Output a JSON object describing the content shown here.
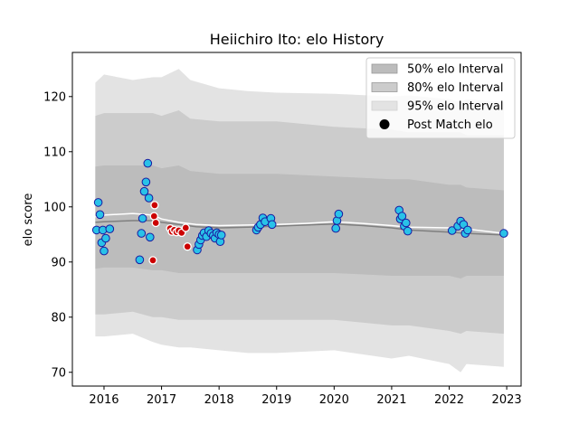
{
  "chart_data": {
    "type": "scatter",
    "title": "Heiichiro Ito: elo History",
    "xlabel": "",
    "ylabel": "elo score",
    "xlim": [
      2015.45,
      2023.25
    ],
    "ylim": [
      67.5,
      128
    ],
    "x_ticks": [
      2016,
      2017,
      2018,
      2019,
      2020,
      2021,
      2022,
      2023
    ],
    "x_tick_labels": [
      "2016",
      "2017",
      "2018",
      "2019",
      "2020",
      "2021",
      "2022",
      "2023"
    ],
    "y_ticks": [
      70,
      80,
      90,
      100,
      110,
      120
    ],
    "y_tick_labels": [
      "70",
      "80",
      "90",
      "100",
      "110",
      "120"
    ],
    "legend_position": "top-right",
    "legend": [
      {
        "label": "50% elo Interval",
        "kind": "band50"
      },
      {
        "label": "80% elo Interval",
        "kind": "band80"
      },
      {
        "label": "95% elo Interval",
        "kind": "band95"
      },
      {
        "label": "Post Match elo",
        "kind": "marker"
      }
    ],
    "colors": {
      "band95": "#e3e3e3",
      "band80": "#cccccc",
      "band50": "#bcbcbc",
      "mean_line": "#ffffff",
      "median_line": "#7f7f7f",
      "marker_fill": "#29c2e8",
      "marker_edge": "#1a1aa0",
      "red_fill": "#cc0000",
      "red_edge": "#ffffff"
    },
    "bands": {
      "x": [
        2015.85,
        2016.0,
        2016.5,
        2016.85,
        2017.0,
        2017.3,
        2017.5,
        2018.0,
        2018.5,
        2019.0,
        2020.0,
        2021.0,
        2021.3,
        2022.0,
        2022.2,
        2022.3,
        2022.95
      ],
      "p95_hi": [
        122.5,
        124.0,
        123.0,
        123.5,
        123.5,
        125.0,
        123.0,
        121.5,
        121.0,
        120.7,
        120.5,
        120.0,
        120.2,
        119.5,
        119.0,
        119.5,
        119.0
      ],
      "p95_lo": [
        76.5,
        76.5,
        77.0,
        75.5,
        75.0,
        74.5,
        74.5,
        74.0,
        73.5,
        73.5,
        74.0,
        72.5,
        73.0,
        71.5,
        70.0,
        71.5,
        71.0
      ],
      "p80_hi": [
        116.5,
        117.0,
        117.0,
        117.0,
        116.5,
        117.5,
        116.0,
        115.5,
        115.5,
        115.5,
        114.5,
        114.0,
        113.5,
        113.5,
        113.5,
        113.0,
        113.0
      ],
      "p80_lo": [
        80.5,
        80.5,
        81.0,
        80.0,
        80.0,
        79.5,
        79.5,
        79.5,
        79.5,
        79.5,
        79.5,
        78.5,
        78.5,
        77.5,
        77.0,
        77.5,
        77.0
      ],
      "p50_hi": [
        107.3,
        107.5,
        107.5,
        107.5,
        107.0,
        107.5,
        106.5,
        106.0,
        106.0,
        106.0,
        105.5,
        105.0,
        105.0,
        104.0,
        104.0,
        103.5,
        103.0
      ],
      "p50_lo": [
        88.8,
        89.0,
        89.0,
        88.5,
        88.5,
        88.0,
        88.0,
        88.0,
        88.0,
        88.0,
        88.0,
        87.5,
        87.5,
        87.5,
        87.0,
        87.5,
        87.5
      ]
    },
    "mean_line": {
      "x": [
        2015.85,
        2016.0,
        2016.5,
        2016.85,
        2017.0,
        2017.3,
        2017.6,
        2018.0,
        2018.5,
        2019.0,
        2019.5,
        2020.0,
        2020.5,
        2021.0,
        2021.3,
        2022.0,
        2022.3,
        2022.95
      ],
      "y": [
        98.2,
        98.5,
        98.8,
        98.5,
        97.8,
        97.2,
        96.8,
        96.6,
        96.7,
        96.8,
        97.0,
        97.3,
        97.0,
        96.6,
        96.3,
        96.2,
        96.0,
        95.2
      ]
    },
    "median_line": {
      "x": [
        2015.85,
        2016.0,
        2016.5,
        2016.85,
        2017.0,
        2017.3,
        2017.6,
        2018.0,
        2018.5,
        2019.0,
        2019.5,
        2020.0,
        2020.5,
        2021.0,
        2021.3,
        2022.0,
        2022.3,
        2022.95
      ],
      "y": [
        97.2,
        97.3,
        97.5,
        97.5,
        97.2,
        96.8,
        96.4,
        96.2,
        96.3,
        96.5,
        96.7,
        96.9,
        96.6,
        96.2,
        95.8,
        95.4,
        95.2,
        94.9
      ]
    },
    "points": [
      {
        "x": 2015.87,
        "y": 95.8,
        "c": "b"
      },
      {
        "x": 2015.9,
        "y": 100.8,
        "c": "b"
      },
      {
        "x": 2015.93,
        "y": 98.6,
        "c": "b"
      },
      {
        "x": 2015.96,
        "y": 93.5,
        "c": "b"
      },
      {
        "x": 2015.98,
        "y": 95.8,
        "c": "b"
      },
      {
        "x": 2016.0,
        "y": 92.0,
        "c": "b"
      },
      {
        "x": 2016.03,
        "y": 94.3,
        "c": "b"
      },
      {
        "x": 2016.1,
        "y": 96.0,
        "c": "b"
      },
      {
        "x": 2016.62,
        "y": 90.4,
        "c": "b"
      },
      {
        "x": 2016.65,
        "y": 95.2,
        "c": "b"
      },
      {
        "x": 2016.67,
        "y": 97.9,
        "c": "b"
      },
      {
        "x": 2016.7,
        "y": 102.8,
        "c": "b"
      },
      {
        "x": 2016.73,
        "y": 104.5,
        "c": "b"
      },
      {
        "x": 2016.76,
        "y": 107.9,
        "c": "b"
      },
      {
        "x": 2016.78,
        "y": 101.6,
        "c": "b"
      },
      {
        "x": 2016.8,
        "y": 94.5,
        "c": "b"
      },
      {
        "x": 2016.85,
        "y": 90.3,
        "c": "r"
      },
      {
        "x": 2016.87,
        "y": 98.3,
        "c": "r"
      },
      {
        "x": 2016.9,
        "y": 97.1,
        "c": "r"
      },
      {
        "x": 2016.88,
        "y": 100.3,
        "c": "r"
      },
      {
        "x": 2017.15,
        "y": 96.1,
        "c": "r"
      },
      {
        "x": 2017.18,
        "y": 95.5,
        "c": "r"
      },
      {
        "x": 2017.22,
        "y": 95.8,
        "c": "r"
      },
      {
        "x": 2017.26,
        "y": 95.4,
        "c": "r"
      },
      {
        "x": 2017.3,
        "y": 95.7,
        "c": "r"
      },
      {
        "x": 2017.35,
        "y": 95.3,
        "c": "r"
      },
      {
        "x": 2017.42,
        "y": 96.2,
        "c": "r"
      },
      {
        "x": 2017.45,
        "y": 92.8,
        "c": "r"
      },
      {
        "x": 2017.62,
        "y": 92.2,
        "c": "b"
      },
      {
        "x": 2017.65,
        "y": 93.2,
        "c": "b"
      },
      {
        "x": 2017.68,
        "y": 94.0,
        "c": "b"
      },
      {
        "x": 2017.71,
        "y": 94.8,
        "c": "b"
      },
      {
        "x": 2017.74,
        "y": 95.3,
        "c": "b"
      },
      {
        "x": 2017.78,
        "y": 94.6,
        "c": "b"
      },
      {
        "x": 2017.82,
        "y": 95.7,
        "c": "b"
      },
      {
        "x": 2017.86,
        "y": 95.2,
        "c": "b"
      },
      {
        "x": 2017.9,
        "y": 94.8,
        "c": "b"
      },
      {
        "x": 2017.93,
        "y": 94.3,
        "c": "b"
      },
      {
        "x": 2017.96,
        "y": 95.3,
        "c": "b"
      },
      {
        "x": 2018.0,
        "y": 95.0,
        "c": "b"
      },
      {
        "x": 2018.02,
        "y": 93.7,
        "c": "b"
      },
      {
        "x": 2018.04,
        "y": 94.9,
        "c": "b"
      },
      {
        "x": 2018.65,
        "y": 95.8,
        "c": "b"
      },
      {
        "x": 2018.68,
        "y": 96.3,
        "c": "b"
      },
      {
        "x": 2018.72,
        "y": 96.8,
        "c": "b"
      },
      {
        "x": 2018.76,
        "y": 98.0,
        "c": "b"
      },
      {
        "x": 2018.8,
        "y": 97.3,
        "c": "b"
      },
      {
        "x": 2018.9,
        "y": 97.9,
        "c": "b"
      },
      {
        "x": 2018.92,
        "y": 96.8,
        "c": "b"
      },
      {
        "x": 2020.03,
        "y": 96.1,
        "c": "b"
      },
      {
        "x": 2020.05,
        "y": 97.5,
        "c": "b"
      },
      {
        "x": 2020.08,
        "y": 98.7,
        "c": "b"
      },
      {
        "x": 2021.13,
        "y": 99.4,
        "c": "b"
      },
      {
        "x": 2021.15,
        "y": 97.8,
        "c": "b"
      },
      {
        "x": 2021.18,
        "y": 98.3,
        "c": "b"
      },
      {
        "x": 2021.22,
        "y": 96.5,
        "c": "b"
      },
      {
        "x": 2021.25,
        "y": 97.1,
        "c": "b"
      },
      {
        "x": 2021.28,
        "y": 95.6,
        "c": "b"
      },
      {
        "x": 2022.05,
        "y": 95.7,
        "c": "b"
      },
      {
        "x": 2022.15,
        "y": 96.5,
        "c": "b"
      },
      {
        "x": 2022.2,
        "y": 97.4,
        "c": "b"
      },
      {
        "x": 2022.25,
        "y": 96.8,
        "c": "b"
      },
      {
        "x": 2022.28,
        "y": 95.2,
        "c": "b"
      },
      {
        "x": 2022.32,
        "y": 95.8,
        "c": "b"
      },
      {
        "x": 2022.95,
        "y": 95.2,
        "c": "b"
      }
    ]
  }
}
